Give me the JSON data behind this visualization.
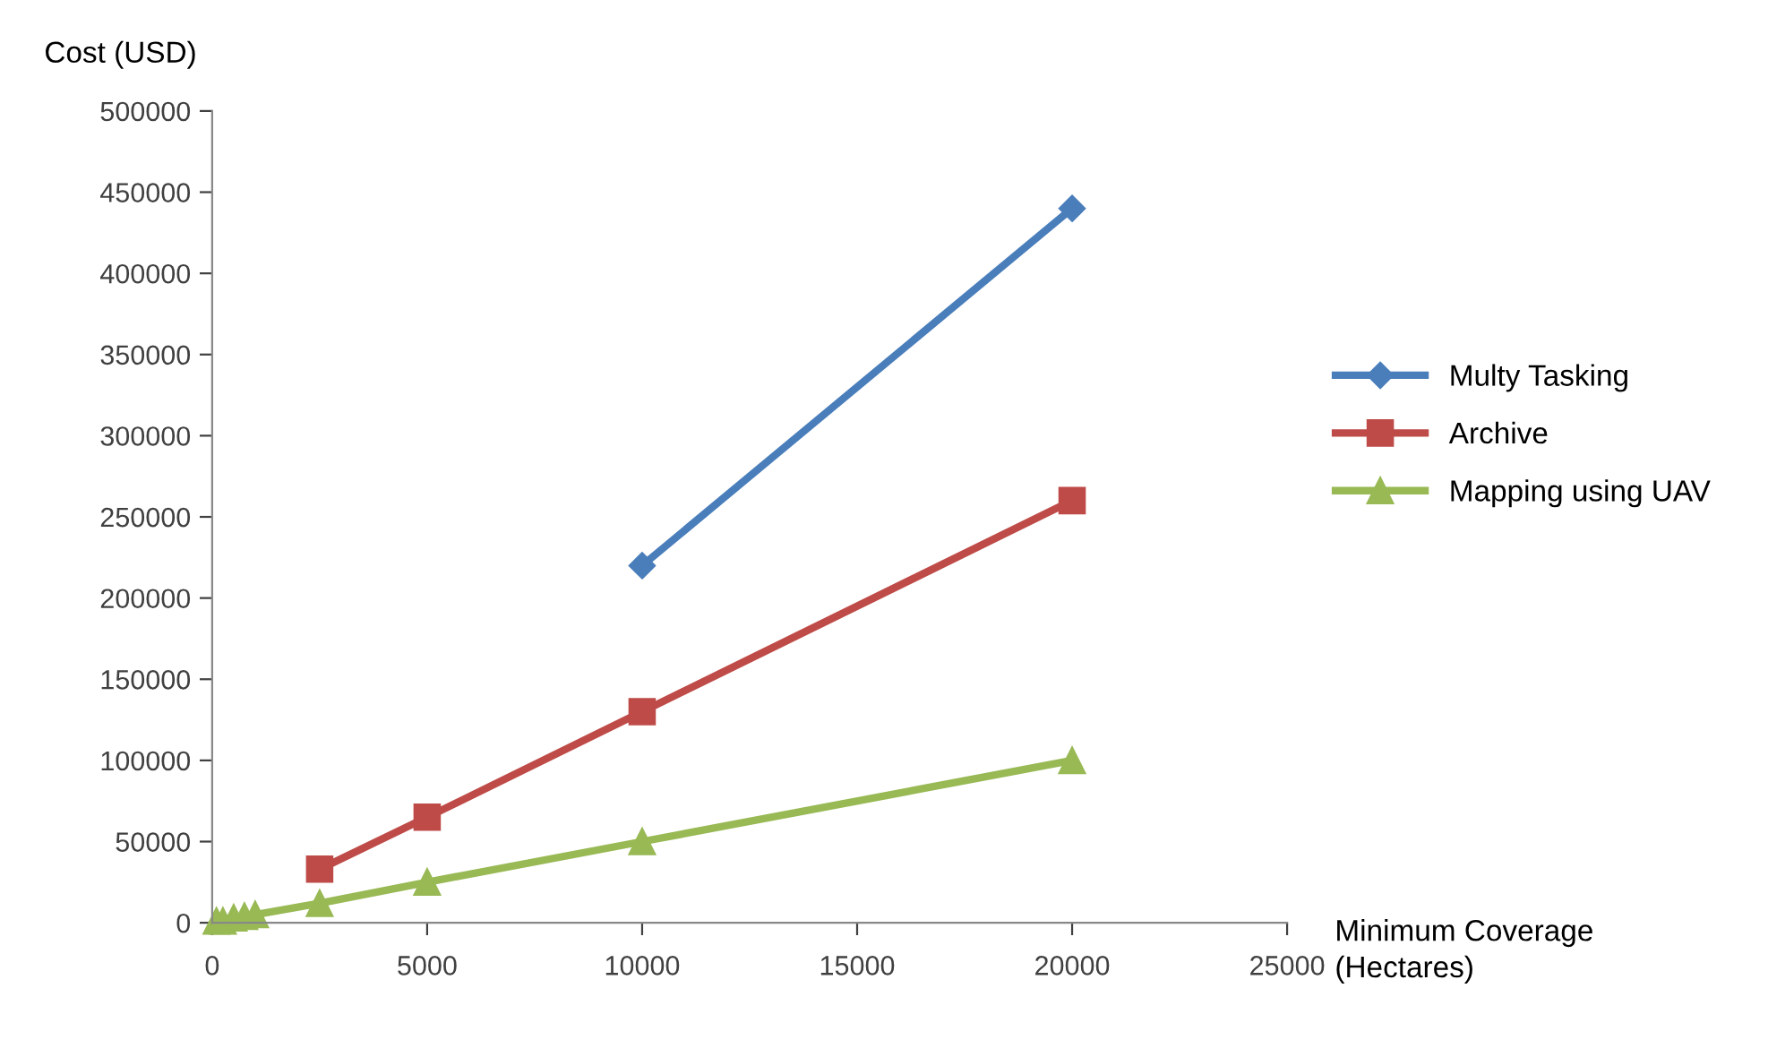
{
  "chart_data": {
    "type": "line",
    "xlabel": "Minimum Coverage\n(Hectares)",
    "ylabel": "Cost (USD)",
    "xlim": [
      0,
      25000
    ],
    "xticks": [
      0,
      5000,
      10000,
      15000,
      20000,
      25000
    ],
    "ylim": [
      0,
      500000
    ],
    "yticks": [
      0,
      50000,
      100000,
      150000,
      200000,
      250000,
      300000,
      350000,
      400000,
      450000,
      500000
    ],
    "grid": false,
    "legend": "right",
    "series": [
      {
        "name": "Multy Tasking",
        "color": "#4a7ebb",
        "marker": "diamond",
        "x": [
          10000,
          20000
        ],
        "values": [
          220000,
          440000
        ]
      },
      {
        "name": "Archive",
        "color": "#be4b48",
        "marker": "square",
        "x": [
          2500,
          5000,
          10000,
          20000
        ],
        "values": [
          33000,
          65000,
          130000,
          260000
        ]
      },
      {
        "name": "Mapping using UAV",
        "color": "#98b954",
        "marker": "triangle",
        "x": [
          100,
          250,
          500,
          750,
          1000,
          2500,
          5000,
          10000,
          20000
        ],
        "values": [
          1000,
          1000,
          3000,
          4000,
          5000,
          12000,
          25000,
          50000,
          100000
        ]
      }
    ]
  }
}
